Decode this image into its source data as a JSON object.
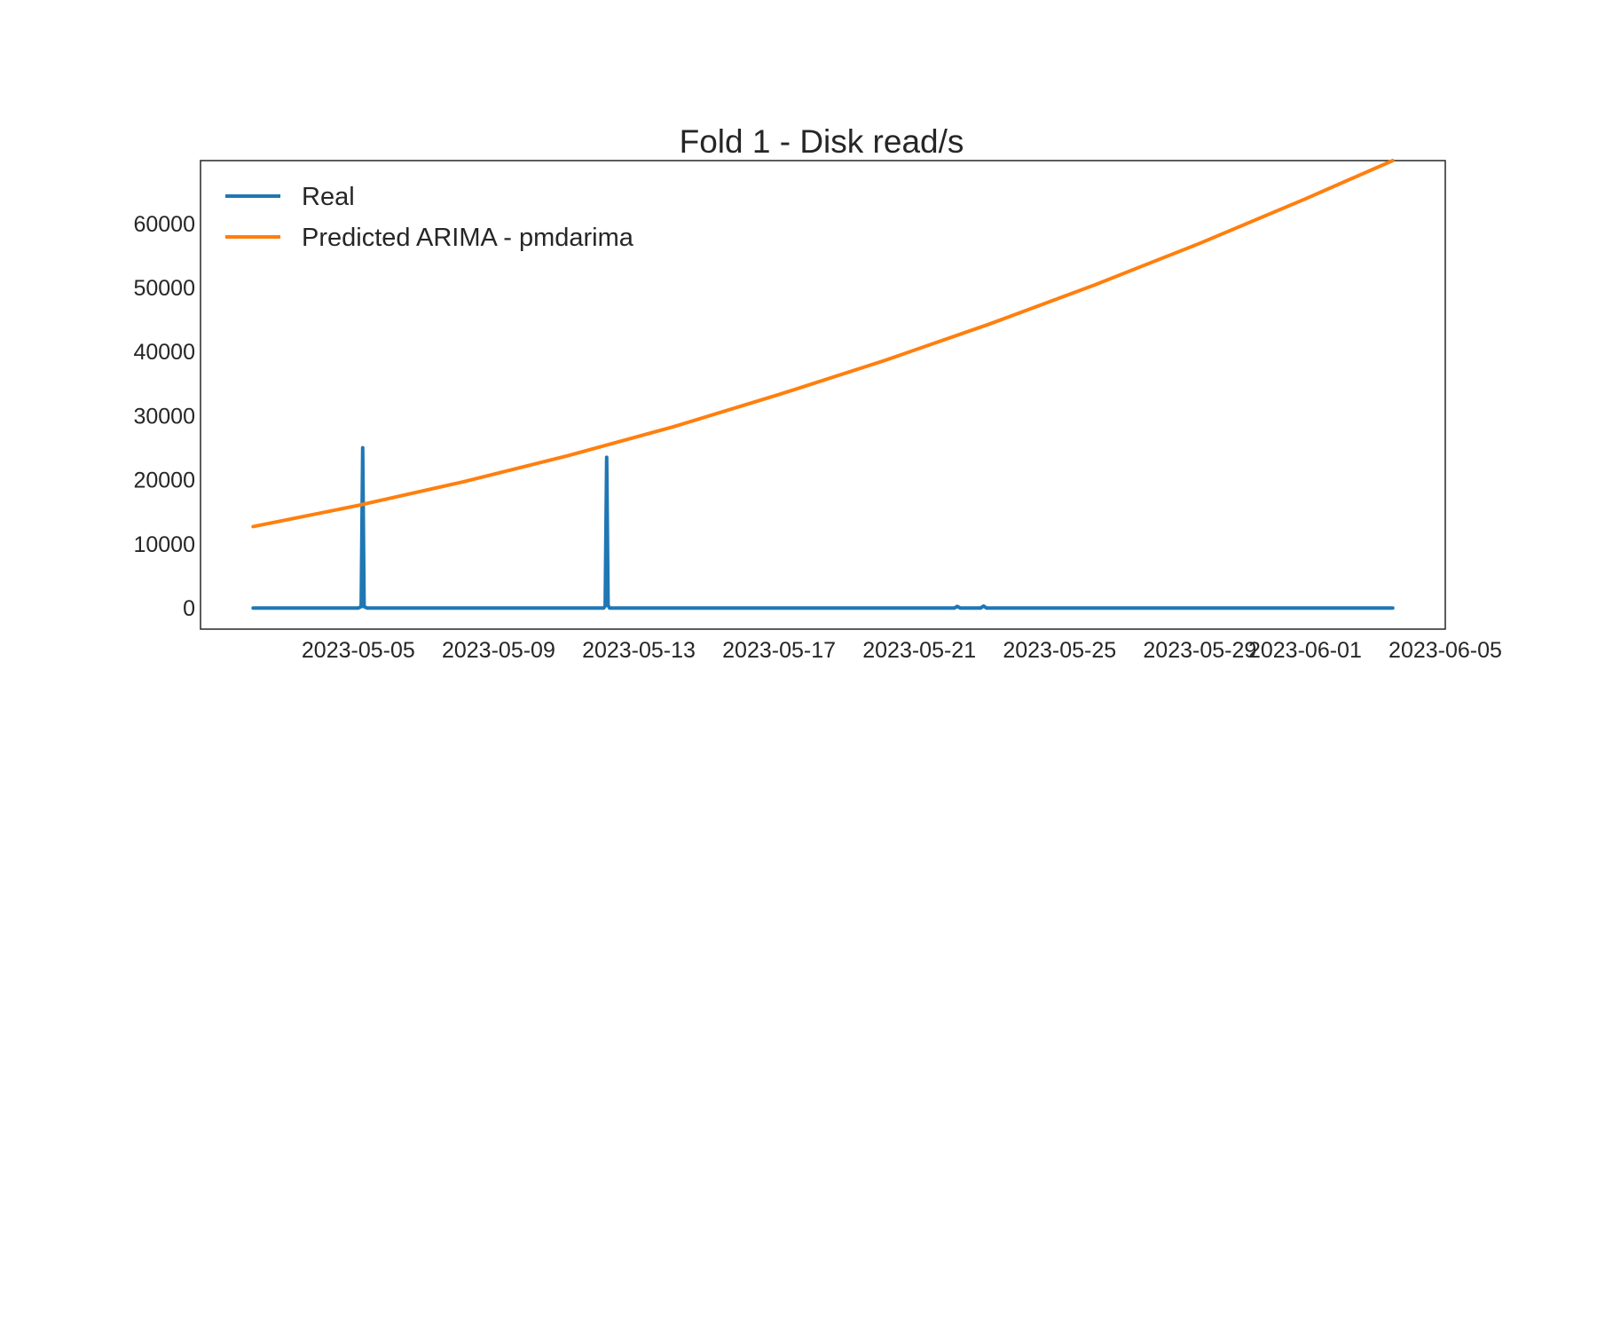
{
  "chart_data": {
    "type": "line",
    "title": "Fold 1 - Disk read/s",
    "xlabel": "",
    "ylabel": "",
    "x_type": "date",
    "xlim": [
      "2023-04-30T12:00",
      "2023-06-05T00:00"
    ],
    "ylim": [
      -3300,
      69800
    ],
    "x_ticks": [
      "2023-05-05",
      "2023-05-09",
      "2023-05-13",
      "2023-05-17",
      "2023-05-21",
      "2023-05-25",
      "2023-05-29",
      "2023-06-01",
      "2023-06-05"
    ],
    "y_ticks": [
      0,
      10000,
      20000,
      30000,
      40000,
      50000,
      60000
    ],
    "grid": false,
    "legend_position": "upper left",
    "series": [
      {
        "name": "Real",
        "color": "#1f77b4",
        "x": [
          "2023-05-02T00:00",
          "2023-05-05T00:00",
          "2023-05-05T02:00",
          "2023-05-05T03:00",
          "2023-05-05T04:00",
          "2023-05-05T06:00",
          "2023-05-12T00:00",
          "2023-05-12T01:00",
          "2023-05-12T02:00",
          "2023-05-12T03:00",
          "2023-05-12T04:00",
          "2023-05-12T05:00",
          "2023-05-22T00:00",
          "2023-05-22T02:00",
          "2023-05-22T04:00",
          "2023-05-22T18:00",
          "2023-05-22T20:00",
          "2023-05-22T22:00",
          "2023-06-03T12:00"
        ],
        "y": [
          0,
          0,
          200,
          25000,
          200,
          0,
          0,
          300,
          23500,
          400,
          0,
          0,
          0,
          250,
          0,
          0,
          300,
          0,
          0
        ]
      },
      {
        "name": "Predicted ARIMA - pmdarima",
        "color": "#ff7f0e",
        "x": [
          "2023-05-02T00:00",
          "2023-05-05T00:00",
          "2023-05-08T00:00",
          "2023-05-11T00:00",
          "2023-05-14T00:00",
          "2023-05-17T00:00",
          "2023-05-20T00:00",
          "2023-05-23T00:00",
          "2023-05-26T00:00",
          "2023-05-29T00:00",
          "2023-06-01T00:00",
          "2023-06-03T12:00"
        ],
        "y": [
          12700,
          16000,
          19700,
          23800,
          28300,
          33300,
          38600,
          44300,
          50400,
          56900,
          63800,
          69800
        ]
      }
    ]
  }
}
